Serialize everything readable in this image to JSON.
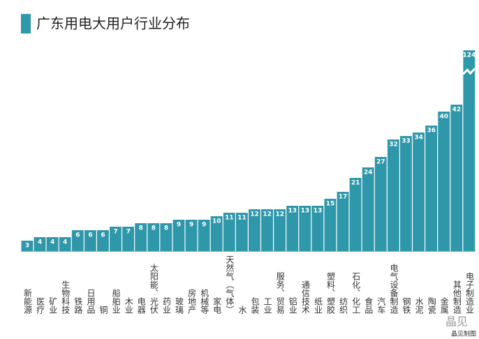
{
  "chart_data": {
    "type": "bar",
    "title": "广东用电大用户行业分布",
    "categories": [
      "新能源",
      "医疗",
      "矿业",
      "生物科技",
      "铁路",
      "日用品",
      "铜",
      "船舶业",
      "木业",
      "电器",
      "太阳能、光伏",
      "药业",
      "玻璃",
      "房地产",
      "机械等",
      "家电",
      "天然气（气体）",
      "水",
      "包装",
      "工业",
      "服务、贸易",
      "铝业",
      "通信技术",
      "纸业",
      "塑料、塑胶",
      "纺织",
      "石化、化工",
      "食品",
      "汽车",
      "电气设备制造",
      "钢铁",
      "水泥",
      "陶瓷",
      "金属",
      "其他制造",
      "电子制造业"
    ],
    "values": [
      3,
      4,
      4,
      4,
      6,
      6,
      6,
      7,
      7,
      8,
      8,
      8,
      9,
      9,
      9,
      10,
      11,
      11,
      12,
      12,
      12,
      13,
      13,
      13,
      15,
      17,
      21,
      24,
      27,
      32,
      33,
      34,
      36,
      40,
      42,
      124
    ],
    "color": "#2f97aa"
  },
  "watermark": {
    "logo": "晶见",
    "caption": "晶见制图"
  }
}
